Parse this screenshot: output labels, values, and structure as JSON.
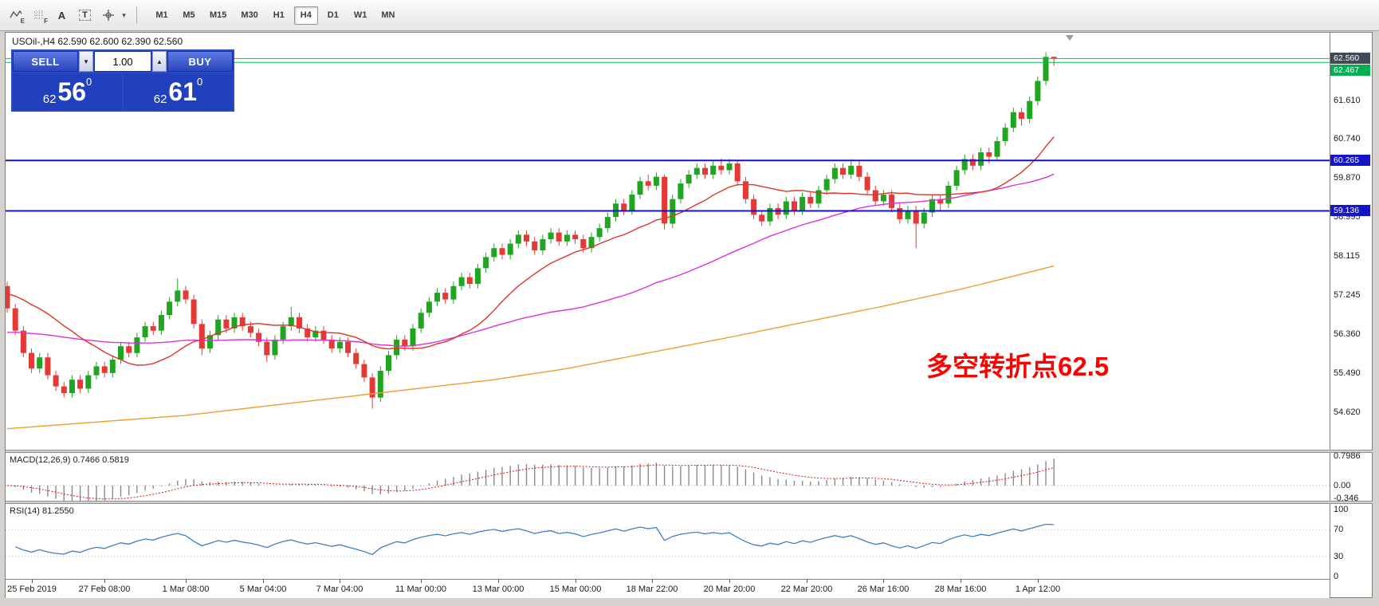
{
  "toolbar": {
    "icons": [
      {
        "name": "polyline-tool-icon",
        "label": "",
        "sub": "E"
      },
      {
        "name": "grid-tool-icon",
        "label": "",
        "sub": "F"
      },
      {
        "name": "text-tool-icon",
        "label": "A",
        "sub": ""
      },
      {
        "name": "textbox-tool-icon",
        "label": "T",
        "sub": ""
      },
      {
        "name": "crosshair-tool-icon",
        "label": "",
        "sub": ""
      }
    ],
    "dropdown_glyph": "▾",
    "timeframes": [
      "M1",
      "M5",
      "M15",
      "M30",
      "H1",
      "H4",
      "D1",
      "W1",
      "MN"
    ],
    "active_timeframe": "H4"
  },
  "chart_header": {
    "title": "USOil-,H4  62.590 62.600 62.390 62.560"
  },
  "trade_panel": {
    "sell_label": "SELL",
    "buy_label": "BUY",
    "volume": "1.00",
    "vol_down_glyph": "▼",
    "vol_up_glyph": "▲",
    "sell_price": {
      "prefix": "62",
      "main": "56",
      "sup": "0"
    },
    "buy_price": {
      "prefix": "62",
      "main": "61",
      "sup": "0"
    }
  },
  "annotation": {
    "text": "多空转折点62.5",
    "color": "#ff0000"
  },
  "price_axis": {
    "labels": [
      {
        "text": "61.610",
        "price": 61.61
      },
      {
        "text": "60.740",
        "price": 60.74
      },
      {
        "text": "59.870",
        "price": 59.87
      },
      {
        "text": "58.995",
        "price": 58.995
      },
      {
        "text": "58.115",
        "price": 58.115
      },
      {
        "text": "57.245",
        "price": 57.245
      },
      {
        "text": "56.360",
        "price": 56.36
      },
      {
        "text": "55.490",
        "price": 55.49
      },
      {
        "text": "54.620",
        "price": 54.62
      }
    ],
    "tags": [
      {
        "text": "62.560",
        "price": 62.56,
        "bg": "#3f4b56"
      },
      {
        "text": "62.467",
        "price": 62.467,
        "bg": "#00b050"
      },
      {
        "text": "60.265",
        "price": 60.265,
        "bg": "#1414c8"
      },
      {
        "text": "59.136",
        "price": 59.136,
        "bg": "#1414c8"
      }
    ]
  },
  "chart_data": {
    "type": "candlestick",
    "symbol": "USOil-",
    "period": "H4",
    "ohlc_last": {
      "open": "62.590",
      "high": "62.600",
      "low": "62.390",
      "close": "62.560"
    },
    "up_color": "#1fa51f",
    "down_color": "#e53935",
    "ylim": [
      53.78,
      63.13
    ],
    "candles": [
      [
        57.45,
        57.55,
        56.85,
        56.95
      ],
      [
        56.95,
        57.05,
        56.35,
        56.45
      ],
      [
        56.45,
        56.55,
        55.85,
        55.95
      ],
      [
        55.95,
        56.05,
        55.5,
        55.6
      ],
      [
        55.6,
        55.95,
        55.5,
        55.85
      ],
      [
        55.85,
        55.95,
        55.35,
        55.45
      ],
      [
        55.45,
        55.55,
        55.1,
        55.2
      ],
      [
        55.2,
        55.3,
        54.95,
        55.05
      ],
      [
        55.05,
        55.45,
        54.95,
        55.35
      ],
      [
        55.35,
        55.45,
        55.05,
        55.15
      ],
      [
        55.15,
        55.55,
        55.05,
        55.45
      ],
      [
        55.45,
        55.75,
        55.35,
        55.65
      ],
      [
        55.65,
        55.75,
        55.4,
        55.5
      ],
      [
        55.5,
        55.9,
        55.4,
        55.8
      ],
      [
        55.8,
        56.2,
        55.7,
        56.1
      ],
      [
        56.1,
        56.2,
        55.85,
        55.95
      ],
      [
        55.95,
        56.4,
        55.85,
        56.3
      ],
      [
        56.3,
        56.65,
        56.2,
        56.55
      ],
      [
        56.55,
        56.65,
        56.35,
        56.45
      ],
      [
        56.45,
        56.9,
        56.35,
        56.8
      ],
      [
        56.8,
        57.2,
        56.7,
        57.1
      ],
      [
        57.1,
        57.62,
        57.0,
        57.35
      ],
      [
        57.35,
        57.45,
        57.05,
        57.15
      ],
      [
        57.15,
        57.25,
        56.5,
        56.6
      ],
      [
        56.6,
        56.7,
        55.9,
        56.05
      ],
      [
        56.05,
        56.45,
        55.95,
        56.35
      ],
      [
        56.35,
        56.8,
        56.25,
        56.7
      ],
      [
        56.7,
        56.8,
        56.4,
        56.5
      ],
      [
        56.5,
        56.85,
        56.4,
        56.75
      ],
      [
        56.75,
        56.85,
        56.45,
        56.55
      ],
      [
        56.55,
        56.65,
        56.3,
        56.4
      ],
      [
        56.4,
        56.5,
        56.1,
        56.2
      ],
      [
        56.2,
        56.3,
        55.75,
        55.9
      ],
      [
        55.9,
        56.35,
        55.8,
        56.25
      ],
      [
        56.25,
        56.65,
        56.15,
        56.55
      ],
      [
        56.55,
        56.98,
        56.45,
        56.75
      ],
      [
        56.75,
        56.85,
        56.4,
        56.5
      ],
      [
        56.5,
        56.6,
        56.2,
        56.3
      ],
      [
        56.3,
        56.55,
        56.2,
        56.45
      ],
      [
        56.45,
        56.55,
        56.15,
        56.25
      ],
      [
        56.25,
        56.35,
        55.95,
        56.05
      ],
      [
        56.05,
        56.3,
        55.95,
        56.2
      ],
      [
        56.2,
        56.3,
        55.85,
        55.95
      ],
      [
        55.95,
        56.05,
        55.6,
        55.7
      ],
      [
        55.7,
        55.8,
        55.3,
        55.4
      ],
      [
        55.4,
        55.5,
        54.7,
        54.95
      ],
      [
        54.95,
        55.65,
        54.85,
        55.55
      ],
      [
        55.55,
        56.0,
        55.45,
        55.9
      ],
      [
        55.9,
        56.35,
        55.8,
        56.25
      ],
      [
        56.25,
        56.35,
        56.0,
        56.1
      ],
      [
        56.1,
        56.6,
        56.0,
        56.5
      ],
      [
        56.5,
        56.95,
        56.4,
        56.85
      ],
      [
        56.85,
        57.2,
        56.75,
        57.1
      ],
      [
        57.1,
        57.4,
        57.0,
        57.3
      ],
      [
        57.3,
        57.4,
        57.05,
        57.15
      ],
      [
        57.15,
        57.55,
        57.05,
        57.45
      ],
      [
        57.45,
        57.75,
        57.35,
        57.65
      ],
      [
        57.65,
        57.75,
        57.4,
        57.5
      ],
      [
        57.5,
        57.95,
        57.4,
        57.85
      ],
      [
        57.85,
        58.2,
        57.75,
        58.1
      ],
      [
        58.1,
        58.4,
        58.0,
        58.3
      ],
      [
        58.3,
        58.4,
        58.05,
        58.15
      ],
      [
        58.15,
        58.5,
        58.05,
        58.4
      ],
      [
        58.4,
        58.7,
        58.3,
        58.6
      ],
      [
        58.6,
        58.7,
        58.35,
        58.45
      ],
      [
        58.45,
        58.55,
        58.15,
        58.25
      ],
      [
        58.25,
        58.6,
        58.15,
        58.5
      ],
      [
        58.5,
        58.75,
        58.4,
        58.65
      ],
      [
        58.65,
        58.75,
        58.35,
        58.45
      ],
      [
        58.45,
        58.7,
        58.35,
        58.6
      ],
      [
        58.6,
        58.7,
        58.4,
        58.5
      ],
      [
        58.5,
        58.6,
        58.2,
        58.3
      ],
      [
        58.3,
        58.65,
        58.2,
        58.55
      ],
      [
        58.55,
        58.85,
        58.45,
        58.75
      ],
      [
        58.75,
        59.1,
        58.65,
        59.0
      ],
      [
        59.0,
        59.4,
        58.9,
        59.3
      ],
      [
        59.3,
        59.4,
        59.05,
        59.15
      ],
      [
        59.15,
        59.6,
        59.05,
        59.5
      ],
      [
        59.5,
        59.9,
        59.4,
        59.8
      ],
      [
        59.8,
        59.95,
        59.6,
        59.7
      ],
      [
        59.7,
        60.0,
        59.6,
        59.9
      ],
      [
        59.9,
        59.95,
        58.72,
        58.85
      ],
      [
        58.85,
        59.5,
        58.75,
        59.4
      ],
      [
        59.4,
        59.85,
        59.3,
        59.75
      ],
      [
        59.75,
        60.05,
        59.65,
        59.95
      ],
      [
        59.95,
        60.2,
        59.85,
        60.1
      ],
      [
        60.1,
        60.2,
        59.85,
        59.95
      ],
      [
        59.95,
        60.25,
        59.85,
        60.15
      ],
      [
        60.15,
        60.31,
        59.95,
        60.05
      ],
      [
        60.05,
        60.3,
        59.95,
        60.2
      ],
      [
        60.2,
        60.28,
        59.7,
        59.8
      ],
      [
        59.8,
        59.9,
        59.3,
        59.4
      ],
      [
        59.4,
        59.5,
        58.95,
        59.05
      ],
      [
        59.05,
        59.15,
        58.8,
        58.9
      ],
      [
        58.9,
        59.3,
        58.8,
        59.2
      ],
      [
        59.2,
        59.3,
        58.95,
        59.05
      ],
      [
        59.05,
        59.45,
        58.95,
        59.35
      ],
      [
        59.35,
        59.45,
        59.05,
        59.15
      ],
      [
        59.15,
        59.55,
        59.05,
        59.45
      ],
      [
        59.45,
        59.55,
        59.2,
        59.3
      ],
      [
        59.3,
        59.7,
        59.2,
        59.6
      ],
      [
        59.6,
        59.95,
        59.5,
        59.85
      ],
      [
        59.85,
        60.2,
        59.75,
        60.1
      ],
      [
        60.1,
        60.2,
        59.85,
        59.95
      ],
      [
        59.95,
        60.3,
        59.85,
        60.15
      ],
      [
        60.15,
        60.25,
        59.8,
        59.9
      ],
      [
        59.9,
        60.0,
        59.5,
        59.6
      ],
      [
        59.6,
        59.7,
        59.25,
        59.35
      ],
      [
        59.35,
        59.6,
        59.25,
        59.5
      ],
      [
        59.5,
        59.6,
        59.1,
        59.2
      ],
      [
        59.2,
        59.3,
        58.85,
        58.95
      ],
      [
        58.95,
        59.25,
        58.85,
        59.15
      ],
      [
        59.15,
        59.25,
        58.3,
        58.85
      ],
      [
        58.85,
        59.2,
        58.75,
        59.1
      ],
      [
        59.1,
        59.5,
        59.0,
        59.4
      ],
      [
        59.4,
        59.5,
        59.15,
        59.3
      ],
      [
        59.3,
        59.8,
        59.2,
        59.7
      ],
      [
        59.7,
        60.15,
        59.6,
        60.05
      ],
      [
        60.05,
        60.4,
        59.95,
        60.3
      ],
      [
        60.3,
        60.4,
        60.05,
        60.15
      ],
      [
        60.15,
        60.55,
        60.05,
        60.45
      ],
      [
        60.45,
        60.55,
        60.2,
        60.35
      ],
      [
        60.35,
        60.8,
        60.25,
        60.7
      ],
      [
        60.7,
        61.1,
        60.6,
        61.0
      ],
      [
        61.0,
        61.45,
        60.9,
        61.35
      ],
      [
        61.35,
        61.45,
        61.05,
        61.2
      ],
      [
        61.2,
        61.7,
        61.1,
        61.6
      ],
      [
        61.6,
        62.15,
        61.5,
        62.05
      ],
      [
        62.05,
        62.69,
        61.95,
        62.59
      ],
      [
        62.59,
        62.6,
        62.39,
        62.56
      ]
    ],
    "hlines": [
      {
        "price": 62.553,
        "color": "#00c455",
        "width": 1
      },
      {
        "price": 62.467,
        "color": "#00c455",
        "width": 1
      },
      {
        "price": 60.265,
        "color": "#1414c8",
        "width": 2
      },
      {
        "price": 59.136,
        "color": "#1414c8",
        "width": 2
      }
    ],
    "moving_averages": {
      "fast": {
        "period": 16,
        "seed": 57.3,
        "color": "#e03428"
      },
      "mid": {
        "period": 48,
        "seed": 56.4,
        "color": "#dd30dd"
      },
      "slow": {
        "color": "#e8a030",
        "anchors": [
          [
            0,
            54.25
          ],
          [
            22,
            54.55
          ],
          [
            41,
            54.95
          ],
          [
            60,
            55.35
          ],
          [
            69,
            55.6
          ],
          [
            89,
            56.3
          ],
          [
            108,
            57.0
          ],
          [
            118,
            57.4
          ],
          [
            129,
            57.9
          ]
        ]
      }
    },
    "time_ticks": [
      {
        "bar": 3,
        "label": "25 Feb 2019"
      },
      {
        "bar": 12,
        "label": "27 Feb 08:00"
      },
      {
        "bar": 22,
        "label": "1 Mar 08:00"
      },
      {
        "bar": 31.5,
        "label": "5 Mar 04:00"
      },
      {
        "bar": 41,
        "label": "7 Mar 04:00"
      },
      {
        "bar": 51,
        "label": "11 Mar 00:00"
      },
      {
        "bar": 60.5,
        "label": "13 Mar 00:00"
      },
      {
        "bar": 70,
        "label": "15 Mar 00:00"
      },
      {
        "bar": 79.5,
        "label": "18 Mar 22:00"
      },
      {
        "bar": 89,
        "label": "20 Mar 20:00"
      },
      {
        "bar": 98.5,
        "label": "22 Mar 20:00"
      },
      {
        "bar": 108,
        "label": "26 Mar 16:00"
      },
      {
        "bar": 117.5,
        "label": "28 Mar 16:00"
      },
      {
        "bar": 127,
        "label": "1 Apr 12:00"
      }
    ],
    "macd": {
      "label": "MACD(12,26,9)",
      "values": "0.7466 0.5819",
      "fast": 12,
      "slow": 26,
      "signal": 9,
      "range": [
        -0.35,
        0.8
      ],
      "hist_color": "#8a8a8a",
      "signal_color": "#e01010",
      "axis_labels": [
        {
          "text": "0.7986",
          "value": 0.7986
        },
        {
          "text": "0.00",
          "value": 0
        },
        {
          "text": "-0.346",
          "value": -0.346
        }
      ]
    },
    "rsi": {
      "label": "RSI(14)",
      "value": "81.2550",
      "period": 14,
      "levels": [
        70,
        30
      ],
      "color": "#3e7fc1",
      "axis_labels": [
        {
          "text": "100",
          "value": 100
        },
        {
          "text": "70",
          "value": 70
        },
        {
          "text": "30",
          "value": 30
        },
        {
          "text": "0",
          "value": 0
        }
      ]
    }
  }
}
